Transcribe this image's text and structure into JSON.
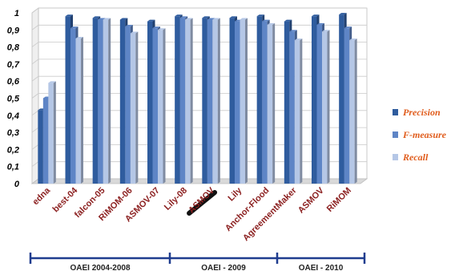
{
  "chart_data": {
    "type": "bar",
    "categories": [
      "edna",
      "best-04",
      "falcon-05",
      "RiMOM-06",
      "ASMOV-07",
      "Lily-08",
      "ASMOV",
      "Lily",
      "Anchor-Flood",
      "AgreementMaker",
      "ASMOV",
      "RiMOM"
    ],
    "series": [
      {
        "name": "Precision",
        "color": "#2f5c9e",
        "values": [
          0.43,
          0.98,
          0.97,
          0.96,
          0.95,
          0.98,
          0.97,
          0.97,
          0.98,
          0.95,
          0.98,
          0.99
        ]
      },
      {
        "name": "F-measure",
        "color": "#5e85c6",
        "values": [
          0.5,
          0.91,
          0.96,
          0.92,
          0.91,
          0.97,
          0.96,
          0.95,
          0.95,
          0.89,
          0.93,
          0.91
        ]
      },
      {
        "name": "Recall",
        "color": "#b5c7e6",
        "values": [
          0.59,
          0.85,
          0.96,
          0.88,
          0.9,
          0.96,
          0.96,
          0.96,
          0.93,
          0.84,
          0.89,
          0.84
        ]
      }
    ],
    "y_ticks": [
      "0",
      "0,1",
      "0,2",
      "0,3",
      "0,4",
      "0,5",
      "0,6",
      "0,7",
      "0,8",
      "0,9",
      "1"
    ],
    "ylim": [
      0,
      1
    ],
    "grid": true,
    "legend_position": "right",
    "highlighted_category_index": 6,
    "groups": [
      {
        "label": "OAEI 2004-2008",
        "from": 0,
        "to": 4
      },
      {
        "label": "OAEI - 2009",
        "from": 5,
        "to": 8
      },
      {
        "label": "OAEI - 2010",
        "from": 9,
        "to": 11
      }
    ],
    "colors": {
      "label_text": "#8b1f1f",
      "group_line": "#1f3d8f",
      "legend_text": "#e05c1c",
      "grid": "#c9c9c9"
    }
  }
}
